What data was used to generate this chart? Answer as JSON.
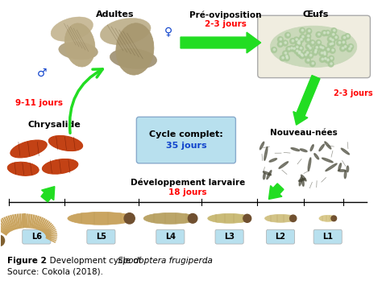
{
  "background_color": "#ffffff",
  "fig_width": 4.74,
  "fig_height": 3.64,
  "dpi": 100,
  "colors": {
    "arrow_green": "#22dd22",
    "text_red": "#ff0000",
    "text_blue_dark": "#1144cc",
    "cycle_box_bg": "#b8e0ee",
    "label_box_bg": "#b8e0ee",
    "moth_light": "#c8b890",
    "moth_dark": "#9a8860",
    "chrysalide": "#c04010",
    "chrysalide_edge": "#802000",
    "larva_tan": "#c8a860",
    "larva_edge": "#806030",
    "egg_green": "#c8ddc0",
    "egg_dot": "#88aa88",
    "nouveau_bg": "#d0c8b0"
  },
  "labels": {
    "adultes": "Adultes",
    "pre_oviposition_line1": "Pré-oviposition",
    "pre_oviposition_line2": "2-3 jours",
    "oeufs": "Œufs",
    "nouveau_nees": "Nouveau-nées",
    "nouveau_days": "2-3 jours",
    "chrysalide": "Chrysalide",
    "chrysalide_days": "9-11 jours",
    "cycle_line1": "Cycle complet:",
    "cycle_line2": "35 jours",
    "dev_line1": "Développement larvaire",
    "dev_line2": "18 jours",
    "larvae": [
      "L6",
      "L5",
      "L4",
      "L3",
      "L2",
      "L1"
    ],
    "figure_caption_bold": "Figure 2",
    "figure_caption_normal": ". Development cycle of ",
    "figure_caption_italic": "Spodoptera frugiperda",
    "figure_caption_end": ".",
    "source": "Source: Cokola (2018)."
  }
}
